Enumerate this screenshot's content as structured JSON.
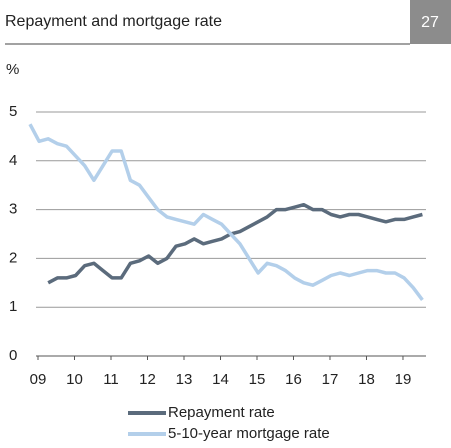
{
  "chart_data": {
    "type": "line",
    "title": "Repayment and mortgage rate",
    "badge": "27",
    "y_label": "%",
    "x": [
      2009,
      2009.25,
      2009.5,
      2009.75,
      2010,
      2010.25,
      2010.5,
      2010.75,
      2011,
      2011.25,
      2011.5,
      2011.75,
      2012,
      2012.25,
      2012.5,
      2012.75,
      2013,
      2013.25,
      2013.5,
      2013.75,
      2014,
      2014.25,
      2014.5,
      2014.75,
      2015,
      2015.25,
      2015.5,
      2015.75,
      2016,
      2016.25,
      2016.5,
      2016.75,
      2017,
      2017.25,
      2017.5,
      2017.75,
      2018,
      2018.25,
      2018.5,
      2018.75,
      2019,
      2019.25,
      2019.5,
      2019.75
    ],
    "series": [
      {
        "name": "Repayment rate",
        "color": "#5b6b7c",
        "values": [
          null,
          null,
          1.5,
          1.6,
          1.6,
          1.65,
          1.85,
          1.9,
          1.75,
          1.6,
          1.6,
          1.9,
          1.95,
          2.05,
          1.9,
          2.0,
          2.25,
          2.3,
          2.4,
          2.3,
          2.35,
          2.4,
          2.5,
          2.55,
          2.65,
          2.75,
          2.85,
          3.0,
          3.0,
          3.05,
          3.1,
          3.0,
          3.0,
          2.9,
          2.85,
          2.9,
          2.9,
          2.85,
          2.8,
          2.75,
          2.8,
          2.8,
          2.85,
          2.9
        ]
      },
      {
        "name": "5-10-year mortgage rate",
        "color": "#b3cfea",
        "values": [
          4.75,
          4.4,
          4.45,
          4.35,
          4.3,
          4.1,
          3.9,
          3.6,
          3.9,
          4.2,
          4.2,
          3.6,
          3.5,
          3.25,
          3.0,
          2.85,
          2.8,
          2.75,
          2.7,
          2.9,
          2.8,
          2.7,
          2.5,
          2.3,
          2.0,
          1.7,
          1.9,
          1.85,
          1.75,
          1.6,
          1.5,
          1.45,
          1.55,
          1.65,
          1.7,
          1.65,
          1.7,
          1.75,
          1.75,
          1.7,
          1.7,
          1.6,
          1.4,
          1.15
        ]
      }
    ],
    "xlim": [
      2009,
      2019.85
    ],
    "xticks": [
      {
        "value": 2009,
        "label": "09"
      },
      {
        "value": 2010,
        "label": "10"
      },
      {
        "value": 2011,
        "label": "11"
      },
      {
        "value": 2012,
        "label": "12"
      },
      {
        "value": 2013,
        "label": "13"
      },
      {
        "value": 2014,
        "label": "14"
      },
      {
        "value": 2015,
        "label": "15"
      },
      {
        "value": 2016,
        "label": "16"
      },
      {
        "value": 2017,
        "label": "17"
      },
      {
        "value": 2018,
        "label": "18"
      },
      {
        "value": 2019,
        "label": "19"
      }
    ],
    "ylim": [
      0,
      5
    ],
    "yticks": [
      0,
      1,
      2,
      3,
      4,
      5
    ],
    "grid": true
  }
}
